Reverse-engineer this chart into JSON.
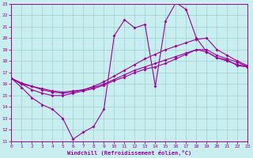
{
  "xlabel": "Windchill (Refroidissement éolien,°C)",
  "bg_color": "#c8eef0",
  "grid_color": "#9ecdd4",
  "line_color": "#990099",
  "xlim": [
    0,
    23
  ],
  "ylim": [
    11,
    23
  ],
  "xticks": [
    0,
    1,
    2,
    3,
    4,
    5,
    6,
    7,
    8,
    9,
    10,
    11,
    12,
    13,
    14,
    15,
    16,
    17,
    18,
    19,
    20,
    21,
    22,
    23
  ],
  "yticks": [
    11,
    12,
    13,
    14,
    15,
    16,
    17,
    18,
    19,
    20,
    21,
    22,
    23
  ],
  "lines": [
    {
      "y": [
        16.5,
        15.7,
        14.8,
        14.2,
        13.8,
        13.0,
        11.2,
        11.8,
        12.3,
        13.8,
        20.2,
        21.6,
        20.9,
        21.2,
        15.8,
        21.5,
        23.1,
        22.5,
        20.0,
        18.8,
        18.3,
        18.1,
        17.6,
        17.5
      ]
    },
    {
      "y": [
        16.5,
        16.0,
        15.5,
        15.2,
        15.0,
        15.0,
        15.2,
        15.4,
        15.6,
        15.9,
        16.3,
        16.6,
        17.0,
        17.3,
        17.5,
        17.8,
        18.2,
        18.6,
        19.0,
        19.0,
        18.5,
        18.2,
        17.9,
        17.5
      ]
    },
    {
      "y": [
        16.5,
        16.0,
        15.8,
        15.5,
        15.3,
        15.2,
        15.3,
        15.5,
        15.8,
        16.2,
        16.7,
        17.2,
        17.7,
        18.2,
        18.6,
        19.0,
        19.3,
        19.6,
        19.9,
        20.0,
        19.0,
        18.5,
        18.0,
        17.6
      ]
    },
    {
      "y": [
        16.5,
        16.1,
        15.8,
        15.6,
        15.4,
        15.3,
        15.4,
        15.5,
        15.7,
        16.0,
        16.4,
        16.8,
        17.2,
        17.5,
        17.8,
        18.1,
        18.4,
        18.7,
        19.0,
        18.8,
        18.3,
        18.0,
        17.7,
        17.5
      ]
    }
  ]
}
